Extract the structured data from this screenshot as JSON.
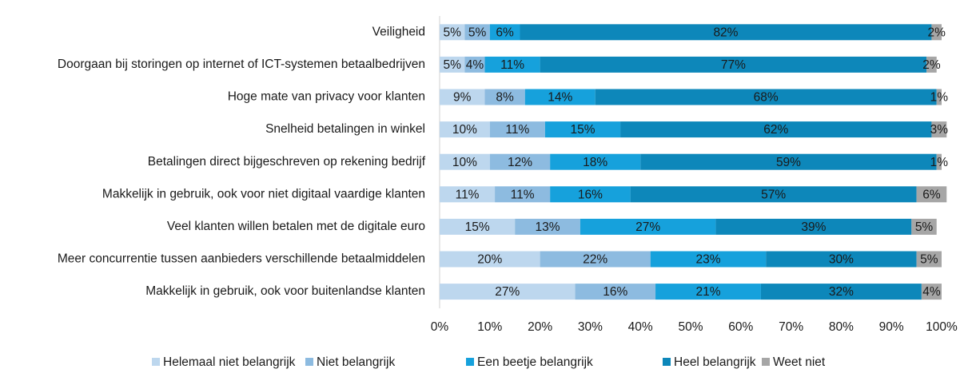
{
  "chart_data": {
    "type": "stacked-bar-horizontal",
    "categories": [
      "Veiligheid",
      "Doorgaan bij storingen op internet of ICT-systemen betaalbedrijven",
      "Hoge mate van privacy voor klanten",
      "Snelheid betalingen in winkel",
      "Betalingen direct bijgeschreven op rekening bedrijf",
      "Makkelijk in gebruik, ook voor niet digitaal vaardige klanten",
      "Veel klanten willen betalen met de digitale euro",
      "Meer concurrentie tussen aanbieders verschillende betaalmiddelen",
      "Makkelijk in gebruik, ook voor buitenlandse klanten"
    ],
    "series": [
      {
        "name": "Helemaal niet belangrijk",
        "color": "#bdd7ee",
        "values": [
          5,
          5,
          9,
          10,
          10,
          11,
          15,
          20,
          27
        ],
        "value_labels": [
          "5%",
          "5%",
          "9%",
          "10%",
          "10%",
          "11%",
          "15%",
          "20%",
          "27%"
        ]
      },
      {
        "name": "Niet belangrijk",
        "color": "#8dbbe0",
        "values": [
          5,
          4,
          8,
          11,
          12,
          11,
          13,
          22,
          16
        ],
        "value_labels": [
          "5%",
          "4%",
          "8%",
          "11%",
          "12%",
          "11%",
          "13%",
          "22%",
          "16%"
        ]
      },
      {
        "name": "Een beetje belangrijk",
        "color": "#16a1dc",
        "values": [
          6,
          11,
          14,
          15,
          18,
          16,
          27,
          23,
          21
        ],
        "value_labels": [
          "6%",
          "11%",
          "14%",
          "15%",
          "18%",
          "16%",
          "27%",
          "23%",
          "21%"
        ]
      },
      {
        "name": "Heel belangrijk",
        "color": "#0d87ba",
        "values": [
          82,
          77,
          68,
          62,
          59,
          57,
          39,
          30,
          32
        ],
        "value_labels": [
          "82%",
          "77%",
          "68%",
          "62%",
          "59%",
          "57%",
          "39%",
          "30%",
          "32%"
        ]
      },
      {
        "name": "Weet niet",
        "color": "#a6a6a6",
        "values": [
          2,
          2,
          1,
          3,
          1,
          6,
          5,
          5,
          4
        ],
        "value_labels": [
          "2%",
          "2%",
          "1%",
          "3%",
          "1%",
          "6%",
          "5%",
          "5%",
          "4%"
        ]
      }
    ],
    "xlim": [
      0,
      100
    ],
    "xticks": [
      {
        "value": 0,
        "label": "0%"
      },
      {
        "value": 10,
        "label": "10%"
      },
      {
        "value": 20,
        "label": "20%"
      },
      {
        "value": 30,
        "label": "30%"
      },
      {
        "value": 40,
        "label": "40%"
      },
      {
        "value": 50,
        "label": "50%"
      },
      {
        "value": 60,
        "label": "60%"
      },
      {
        "value": 70,
        "label": "70%"
      },
      {
        "value": 80,
        "label": "80%"
      },
      {
        "value": 90,
        "label": "90%"
      },
      {
        "value": 100,
        "label": "100%"
      }
    ],
    "legend": "bottom"
  }
}
